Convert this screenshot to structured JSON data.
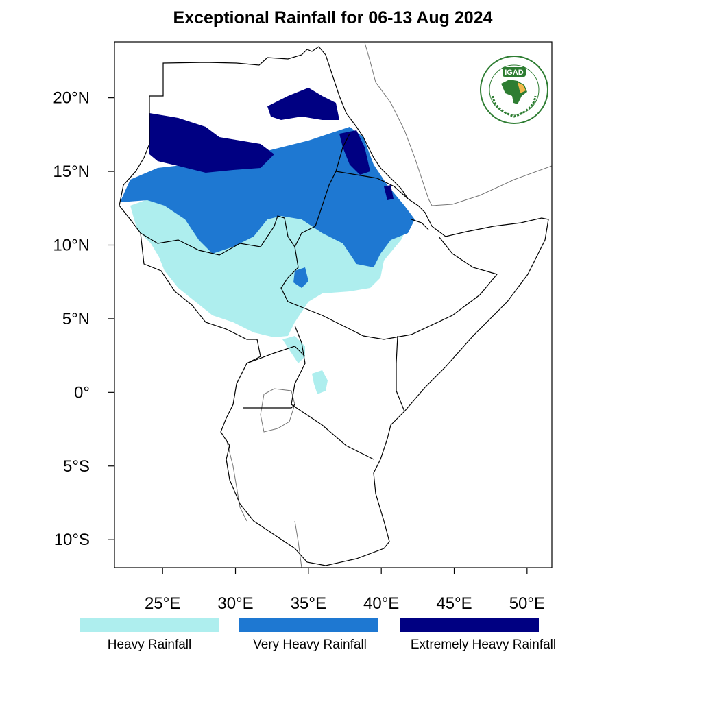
{
  "title": "Exceptional Rainfall for 06-13 Aug 2024",
  "axes": {
    "lon_ticks": [
      "25°E",
      "30°E",
      "35°E",
      "40°E",
      "45°E",
      "50°E"
    ],
    "lat_ticks": [
      "20°N",
      "15°N",
      "10°N",
      "5°N",
      "0°",
      "5°S",
      "10°S"
    ],
    "lon_values": [
      25,
      30,
      35,
      40,
      45,
      50
    ],
    "lat_values": [
      20,
      15,
      10,
      5,
      0,
      -5,
      -10
    ],
    "lon_range": [
      21.7,
      51.7
    ],
    "lat_range": [
      -11.9,
      23.8
    ]
  },
  "legend": [
    {
      "label": "Heavy Rainfall",
      "color": "#aeeeee"
    },
    {
      "label": "Very Heavy Rainfall",
      "color": "#1e78d2"
    },
    {
      "label": "Extremely Heavy Rainfall",
      "color": "#000082"
    }
  ],
  "logo": {
    "text": "IGAD",
    "ring_text": "INTERGOVERNMENTAL AUTHORITY ON DEVELOPMENT",
    "ring_text_fr": "AUTORITÉ INTERGOUVERNEMENTALE POUR LE DÉVELOPPEMENT"
  }
}
